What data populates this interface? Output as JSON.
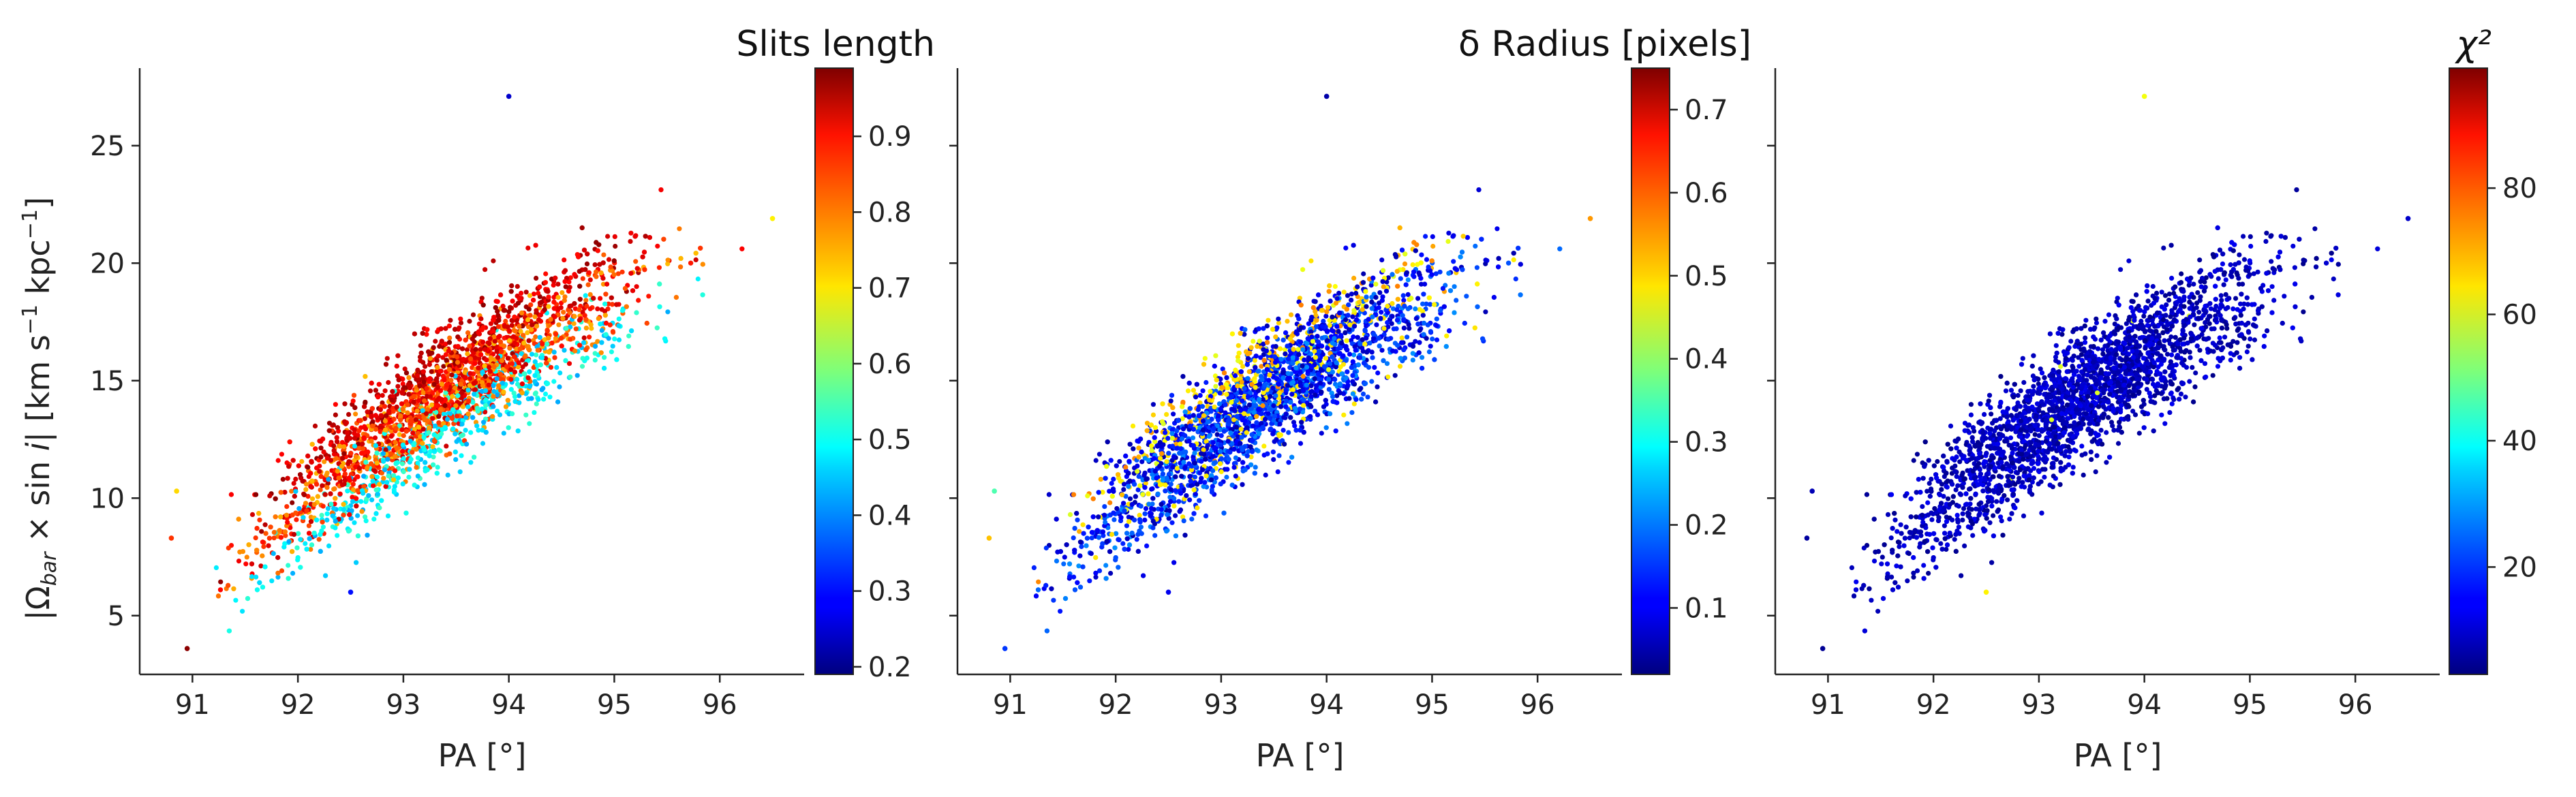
{
  "figure": {
    "ylabel_text": "|Ω_bar × sin i|   [km s⁻¹ kpc⁻¹]",
    "ylabel": {
      "open": "|Ω",
      "sub": "bar",
      "mid": " × sin ",
      "italic": "i",
      "close": "|   [km s",
      "sup1": "−1",
      "unit2": " kpc",
      "sup2": "−1",
      "end": "]"
    },
    "xlabel": "PA [°]"
  },
  "chart_data": [
    {
      "type": "scatter",
      "panel": "left",
      "colorbar_title": "Slits length",
      "xlabel": "PA [°]",
      "ylabel": "|Ω_bar × sin i|   [km s⁻¹ kpc⁻¹]",
      "xlim": [
        90.5,
        96.8
      ],
      "ylim": [
        2.5,
        28.3
      ],
      "xticks": [
        91,
        92,
        93,
        94,
        95,
        96
      ],
      "yticks": [
        5,
        10,
        15,
        20,
        25
      ],
      "colorbar_range": [
        0.19,
        0.99
      ],
      "colorbar_ticks": [
        0.2,
        0.3,
        0.4,
        0.5,
        0.6,
        0.7,
        0.8,
        0.9
      ],
      "colormap": "jet",
      "outliers": [
        {
          "x": 94.0,
          "y": 27.1,
          "c": 0.25
        },
        {
          "x": 90.85,
          "y": 10.3,
          "c": 0.72
        },
        {
          "x": 90.8,
          "y": 8.3,
          "c": 0.85
        },
        {
          "x": 90.95,
          "y": 3.6,
          "c": 0.98
        },
        {
          "x": 92.5,
          "y": 6.0,
          "c": 0.3
        },
        {
          "x": 96.5,
          "y": 21.9,
          "c": 0.7
        }
      ],
      "point_count_approx": 5000,
      "trend_description": "points follow y ≈ 12.5 + 3.4·(x−93) with curvature; lower-band colored cyan/blue, upper/main band red/orange/dark red"
    },
    {
      "type": "scatter",
      "panel": "middle",
      "colorbar_title": "δ Radius [pixels]",
      "xlabel": "PA [°]",
      "xlim": [
        90.5,
        96.8
      ],
      "ylim": [
        2.5,
        28.3
      ],
      "xticks": [
        91,
        92,
        93,
        94,
        95,
        96
      ],
      "colorbar_range": [
        0.02,
        0.75
      ],
      "colorbar_ticks": [
        0.1,
        0.2,
        0.3,
        0.4,
        0.5,
        0.6,
        0.7
      ],
      "colormap": "jet",
      "outliers": [
        {
          "x": 94.0,
          "y": 27.1,
          "c": 0.05
        },
        {
          "x": 90.85,
          "y": 10.3,
          "c": 0.35
        },
        {
          "x": 90.8,
          "y": 8.3,
          "c": 0.52
        },
        {
          "x": 90.95,
          "y": 3.6,
          "c": 0.15
        },
        {
          "x": 92.5,
          "y": 6.0,
          "c": 0.1
        },
        {
          "x": 96.5,
          "y": 21.9,
          "c": 0.55
        }
      ]
    },
    {
      "type": "scatter",
      "panel": "right",
      "colorbar_title": "χ²",
      "xlabel": "PA [°]",
      "xlim": [
        90.5,
        96.8
      ],
      "ylim": [
        2.5,
        28.3
      ],
      "xticks": [
        91,
        92,
        93,
        94,
        95,
        96
      ],
      "colorbar_range": [
        3,
        99
      ],
      "colorbar_ticks": [
        20,
        40,
        60,
        80
      ],
      "colormap": "jet",
      "outliers": [
        {
          "x": 94.0,
          "y": 27.1,
          "c": 62
        },
        {
          "x": 90.85,
          "y": 10.3,
          "c": 8
        },
        {
          "x": 90.8,
          "y": 8.3,
          "c": 6
        },
        {
          "x": 90.95,
          "y": 3.6,
          "c": 5
        },
        {
          "x": 92.5,
          "y": 6.0,
          "c": 64
        },
        {
          "x": 96.5,
          "y": 21.9,
          "c": 10
        }
      ]
    }
  ]
}
